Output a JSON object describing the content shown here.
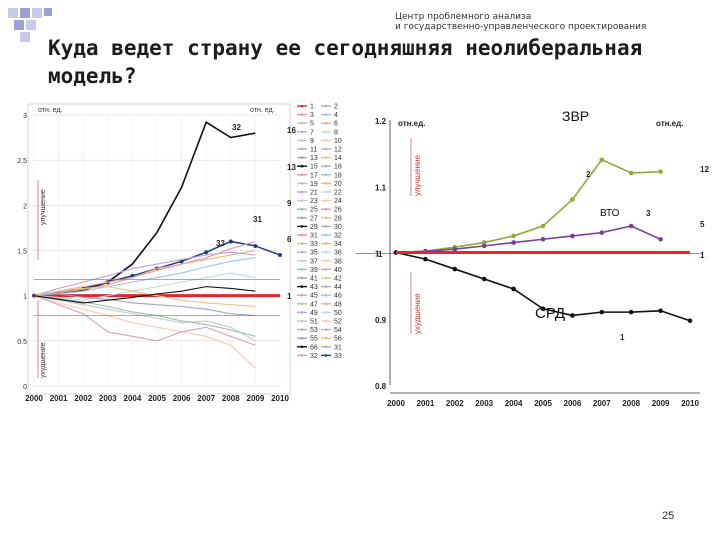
{
  "header": {
    "org_line1": "Центр проблемного анализа",
    "org_line2": "и государственно-управленческого проектирования",
    "title_line1": "Куда ведет страну ее сегодняшняя неолиберальная",
    "title_line2": "модель?"
  },
  "page_number": "25",
  "colors": {
    "red": "#e3262b",
    "green": "#8faa3c",
    "purple": "#7b3f98",
    "black": "#111111",
    "grid": "#d0d0d0"
  },
  "chart_data": [
    {
      "type": "line",
      "title": "",
      "unit_label_left": "отн. ед.",
      "unit_label_right": "отн. ед.",
      "ylabel_up": "улучшение",
      "ylabel_down": "ухудшение",
      "xlabel": "",
      "x": [
        "2000",
        "2001",
        "2002",
        "2003",
        "2004",
        "2005",
        "2006",
        "2007",
        "2008",
        "2009",
        "2010"
      ],
      "ylim": [
        0,
        3
      ],
      "yticks": [
        "0",
        "0.5",
        "1",
        "1.5",
        "2",
        "2.5",
        "3"
      ],
      "legend_labels": [
        "1",
        "2",
        "3",
        "4",
        "5",
        "6",
        "7",
        "8",
        "9",
        "10",
        "11",
        "12",
        "13",
        "14",
        "15",
        "16",
        "17",
        "18",
        "19",
        "20",
        "21",
        "22",
        "23",
        "24",
        "25",
        "26",
        "27",
        "28",
        "29",
        "30",
        "31",
        "32",
        "33",
        "34",
        "35",
        "36",
        "37",
        "38",
        "39",
        "40",
        "41",
        "42",
        "43",
        "44",
        "45",
        "46",
        "47",
        "48",
        "49",
        "50",
        "51",
        "52",
        "53",
        "54",
        "55",
        "56",
        "66",
        "31",
        "32",
        "33"
      ],
      "callouts": [
        "32",
        "16",
        "13",
        "9",
        "31",
        "33",
        "6",
        "1"
      ],
      "series": [
        {
          "name": "32",
          "values": [
            1,
            1.02,
            1.06,
            1.15,
            1.35,
            1.7,
            2.2,
            2.92,
            2.75,
            2.8,
            null
          ]
        },
        {
          "name": "33",
          "values": [
            1,
            1.03,
            1.08,
            1.15,
            1.22,
            1.3,
            1.38,
            1.48,
            1.6,
            1.55,
            1.45
          ]
        },
        {
          "name": "31",
          "values": [
            1,
            1.03,
            1.07,
            1.12,
            1.2,
            1.28,
            1.35,
            1.42,
            1.52,
            1.6,
            null
          ]
        },
        {
          "name": "6",
          "values": [
            1,
            1.02,
            1.05,
            1.1,
            1.15,
            1.2,
            1.25,
            1.32,
            1.38,
            1.42,
            null
          ]
        },
        {
          "name": "1",
          "values": [
            1,
            1,
            1,
            1,
            1,
            1,
            1,
            1,
            1,
            1,
            1
          ]
        },
        {
          "name": "9",
          "values": [
            1,
            1.05,
            1.1,
            1.15,
            1.2,
            1.3,
            1.35,
            1.4,
            1.45,
            1.5,
            null
          ]
        },
        {
          "name": "13",
          "values": [
            1,
            1.08,
            1.15,
            1.22,
            1.3,
            1.35,
            1.4,
            1.45,
            1.48,
            1.45,
            null
          ]
        },
        {
          "name": "16",
          "values": [
            1,
            0.98,
            0.95,
            1.0,
            1.05,
            1.1,
            1.15,
            1.2,
            1.25,
            1.2,
            null
          ]
        },
        {
          "name": "2",
          "values": [
            1,
            0.95,
            0.9,
            0.85,
            0.8,
            0.75,
            0.7,
            0.72,
            0.65,
            0.5,
            null
          ]
        },
        {
          "name": "3",
          "values": [
            1,
            0.92,
            0.85,
            0.78,
            0.7,
            0.65,
            0.6,
            0.55,
            0.45,
            0.2,
            null
          ]
        },
        {
          "name": "4",
          "values": [
            1,
            0.97,
            0.93,
            0.88,
            0.82,
            0.78,
            0.72,
            0.68,
            0.62,
            0.55,
            null
          ]
        },
        {
          "name": "5",
          "values": [
            1,
            0.9,
            0.8,
            0.6,
            0.55,
            0.5,
            0.6,
            0.65,
            0.55,
            0.45,
            null
          ]
        },
        {
          "name": "7",
          "values": [
            1,
            1.02,
            0.98,
            0.96,
            0.92,
            0.9,
            0.88,
            0.85,
            0.8,
            0.78,
            null
          ]
        },
        {
          "name": "8",
          "values": [
            1,
            1.05,
            1.08,
            1.1,
            1.05,
            1.0,
            0.95,
            0.92,
            0.9,
            0.88,
            null
          ]
        },
        {
          "name": "10",
          "values": [
            1,
            0.96,
            0.92,
            0.95,
            0.98,
            1.02,
            1.05,
            1.1,
            1.08,
            1.05,
            null
          ]
        }
      ]
    },
    {
      "type": "line",
      "title": "",
      "unit_label_left": "отн.ед.",
      "unit_label_right": "отн.ед.",
      "ylabel_up": "улучшение",
      "ylabel_down": "ухудшение",
      "xlabel": "",
      "x": [
        "2000",
        "2001",
        "2002",
        "2003",
        "2004",
        "2005",
        "2006",
        "2007",
        "2008",
        "2009",
        "2010"
      ],
      "ylim": [
        0.8,
        1.2
      ],
      "yticks": [
        "0.8",
        "0.9",
        "1",
        "1.1",
        "1.2"
      ],
      "annotations": [
        "ЗВР",
        "ВТО",
        "СРД"
      ],
      "callouts": [
        "2",
        "3",
        "1",
        "12",
        "5",
        "1"
      ],
      "series": [
        {
          "name": "ЗВР",
          "label": "2",
          "color": "#8faa3c",
          "values": [
            1,
            1.002,
            1.008,
            1.015,
            1.025,
            1.04,
            1.08,
            1.14,
            1.12,
            1.122,
            null
          ]
        },
        {
          "name": "ВТО",
          "label": "3",
          "color": "#7b3f98",
          "values": [
            1,
            1.002,
            1.005,
            1.01,
            1.015,
            1.02,
            1.025,
            1.03,
            1.04,
            1.02,
            null
          ]
        },
        {
          "name": "СРД",
          "label": "1",
          "color": "#111111",
          "values": [
            1,
            0.99,
            0.975,
            0.96,
            0.945,
            0.915,
            0.905,
            0.91,
            0.91,
            0.912,
            0.897
          ]
        },
        {
          "name": "base",
          "label": "1",
          "color": "#e3262b",
          "values": [
            1,
            1,
            1,
            1,
            1,
            1,
            1,
            1,
            1,
            1,
            1
          ]
        }
      ]
    }
  ]
}
